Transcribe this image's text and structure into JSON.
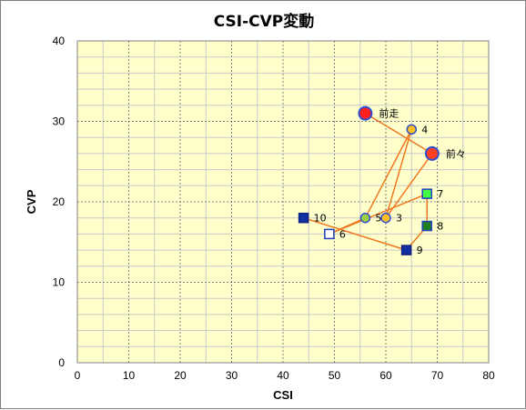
{
  "chart_data": {
    "type": "scatter",
    "title": "CSI-CVP変動",
    "xlabel": "CSI",
    "ylabel": "CVP",
    "xlim": [
      0,
      80
    ],
    "ylim": [
      0,
      40
    ],
    "xticks": [
      0,
      10,
      20,
      30,
      40,
      50,
      60,
      70,
      80
    ],
    "yticks": [
      0,
      10,
      20,
      30,
      40
    ],
    "grid": true,
    "colors": {
      "plot_bg": "#ffffcc",
      "grid_major": "#808080",
      "grid_minor": "#c8c8c8",
      "line": "#f07820",
      "label_text": "#000000"
    },
    "points": [
      {
        "label": "前走",
        "x": 56,
        "y": 31,
        "shape": "circle-large",
        "fill": "#ff2020",
        "stroke": "#3050d0"
      },
      {
        "label": "前々",
        "x": 69,
        "y": 26,
        "shape": "circle-large",
        "fill": "#ff4020",
        "stroke": "#3050d0"
      },
      {
        "label": "3",
        "x": 60,
        "y": 18,
        "shape": "circle",
        "fill": "#ffc020",
        "stroke": "#3050d0"
      },
      {
        "label": "4",
        "x": 65,
        "y": 29,
        "shape": "circle",
        "fill": "#ffc020",
        "stroke": "#3050d0"
      },
      {
        "label": "5",
        "x": 56,
        "y": 18,
        "shape": "circle",
        "fill": "#a0d040",
        "stroke": "#3050d0"
      },
      {
        "label": "6",
        "x": 49,
        "y": 16,
        "shape": "square",
        "fill": "#ffffff",
        "stroke": "#2040c0"
      },
      {
        "label": "7",
        "x": 68,
        "y": 21,
        "shape": "square",
        "fill": "#40ff40",
        "stroke": "#2040c0"
      },
      {
        "label": "8",
        "x": 68,
        "y": 17,
        "shape": "square",
        "fill": "#208020",
        "stroke": "#2040c0"
      },
      {
        "label": "9",
        "x": 64,
        "y": 14,
        "shape": "square",
        "fill": "#1030a0",
        "stroke": "#102080"
      },
      {
        "label": "10",
        "x": 44,
        "y": 18,
        "shape": "square",
        "fill": "#1030a0",
        "stroke": "#102080"
      }
    ],
    "connection_order": [
      "前走",
      "前々",
      "3",
      "4",
      "5",
      "6",
      "7",
      "8",
      "9",
      "10"
    ]
  }
}
